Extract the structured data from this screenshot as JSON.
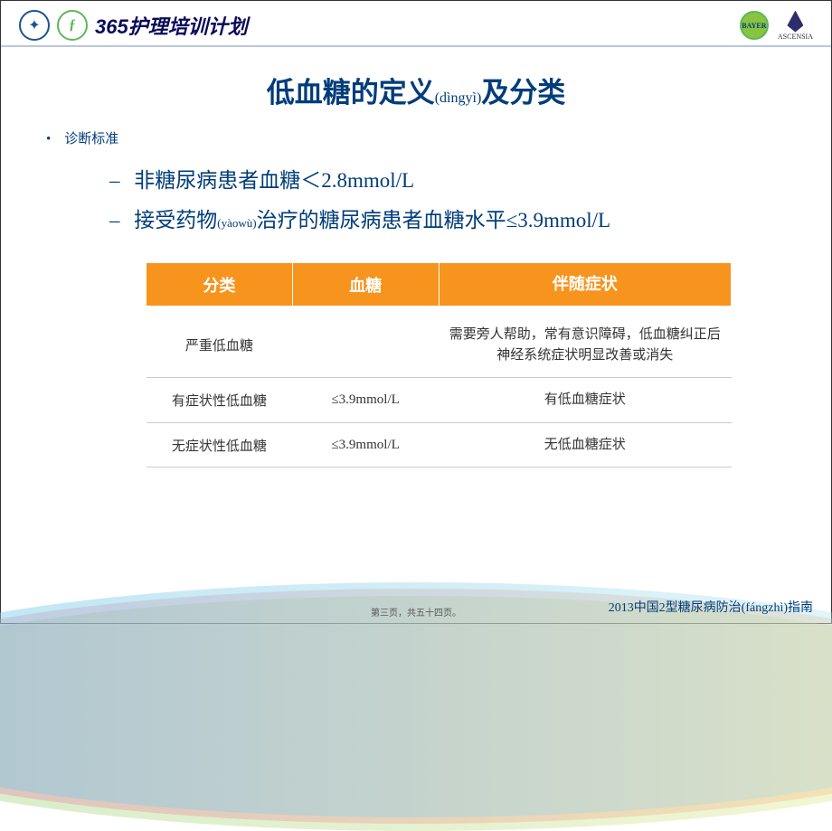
{
  "header": {
    "program_title": "365护理培训计划",
    "bayer_text": "BAYER",
    "ascensia_text": "ASCENSIA"
  },
  "title": {
    "pre": "低血糖的定义",
    "pinyin": "(dìngyì)",
    "post": "及分类"
  },
  "content": {
    "label": "诊断标准",
    "bullets": [
      {
        "text": "非糖尿病患者血糖＜2.8mmol/L",
        "pinyin": ""
      },
      {
        "pre": "接受药物",
        "pinyin": "(yàowù)",
        "post": "治疗的糖尿病患者血糖水平≤3.9mmol/L"
      }
    ]
  },
  "table": {
    "header_bg": "#f7941e",
    "header_color": "#ffffff",
    "columns": [
      "分类",
      "血糖",
      "伴随症状"
    ],
    "rows": [
      [
        "严重低血糖",
        "",
        "需要旁人帮助，常有意识障碍，低血糖纠正后神经系统症状明显改善或消失"
      ],
      [
        "有症状性低血糖",
        "≤3.9mmol/L",
        "有低血糖症状"
      ],
      [
        "无症状性低血糖",
        "≤3.9mmol/L",
        "无低血糖症状"
      ]
    ]
  },
  "footer": {
    "page": "第三页，共五十四页。",
    "reference": "2013中国2型糖尿病防治(fángzhì)指南"
  },
  "colors": {
    "title_color": "#003d7a",
    "text_color": "#003d7a",
    "border_color": "#b8c8e0"
  }
}
